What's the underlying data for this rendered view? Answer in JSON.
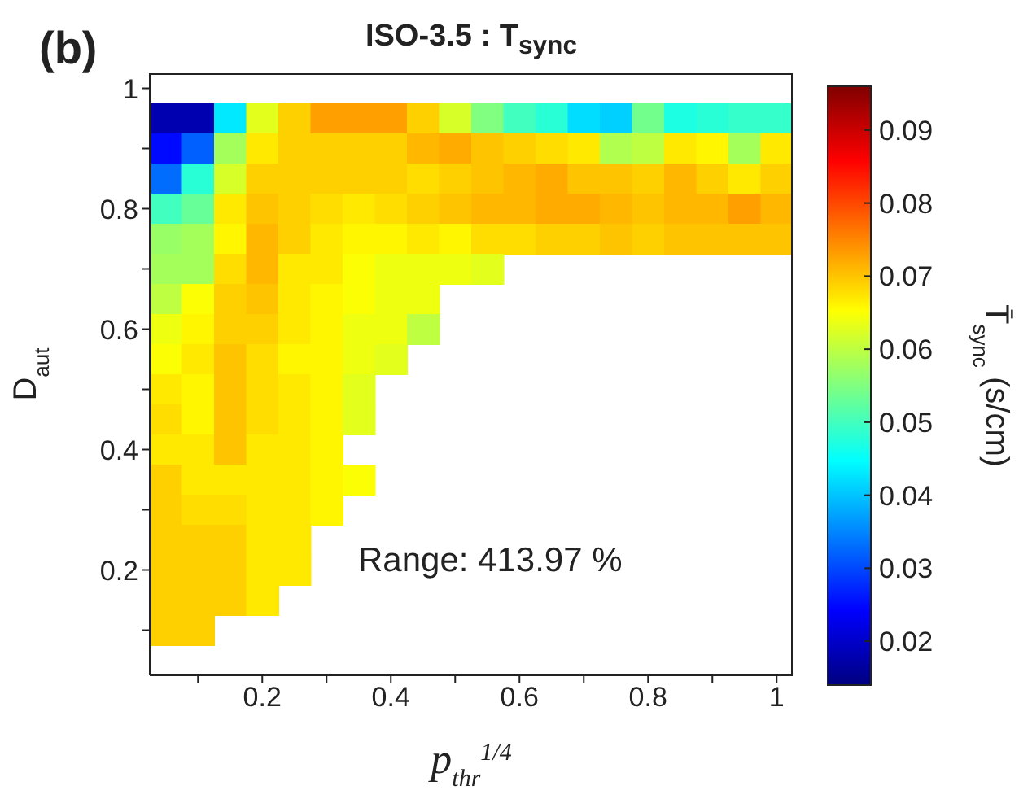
{
  "chart_data": {
    "type": "heatmap",
    "title": "ISO-3.5 : T$_{sync}$",
    "xlabel": "p$_{thr}$$^{1/4}$",
    "ylabel": "D$_{aut}$",
    "clabel": "T̄$_{sync}$ (s/cm)",
    "annotations": [
      "(b)",
      "Range: 413.97 %"
    ],
    "x": [
      0.05,
      0.1,
      0.15,
      0.2,
      0.25,
      0.3,
      0.35,
      0.4,
      0.45,
      0.5,
      0.55,
      0.6,
      0.65,
      0.7,
      0.75,
      0.8,
      0.85,
      0.9,
      0.95,
      1.0
    ],
    "y": [
      0.95,
      0.9,
      0.85,
      0.8,
      0.75,
      0.7,
      0.65,
      0.6,
      0.55,
      0.5,
      0.45,
      0.4,
      0.35,
      0.3,
      0.25,
      0.2,
      0.15,
      0.1
    ],
    "cells": [
      [
        0.018,
        0.018,
        0.043,
        0.063,
        0.069,
        0.073,
        0.073,
        0.073,
        0.069,
        0.062,
        0.055,
        0.05,
        0.048,
        0.042,
        0.041,
        0.054,
        0.047,
        0.048,
        0.049,
        0.049
      ],
      [
        0.025,
        0.032,
        0.058,
        0.067,
        0.069,
        0.069,
        0.069,
        0.069,
        0.071,
        0.072,
        0.07,
        0.069,
        0.068,
        0.067,
        0.059,
        0.06,
        0.067,
        0.066,
        0.058,
        0.067
      ],
      [
        0.033,
        0.048,
        0.062,
        0.069,
        0.069,
        0.069,
        0.069,
        0.069,
        0.068,
        0.069,
        0.07,
        0.071,
        0.072,
        0.07,
        0.07,
        0.069,
        0.071,
        0.069,
        0.067,
        0.069
      ],
      [
        0.05,
        0.053,
        0.067,
        0.07,
        0.069,
        0.068,
        0.067,
        0.068,
        0.069,
        0.07,
        0.071,
        0.071,
        0.072,
        0.072,
        0.071,
        0.07,
        0.071,
        0.071,
        0.073,
        0.071
      ],
      [
        0.057,
        0.058,
        0.066,
        0.071,
        0.069,
        0.067,
        0.066,
        0.066,
        0.067,
        0.066,
        0.068,
        0.068,
        0.069,
        0.069,
        0.07,
        0.069,
        0.07,
        0.07,
        0.07,
        0.07
      ],
      [
        0.058,
        0.058,
        0.068,
        0.071,
        0.067,
        0.067,
        0.065,
        0.064,
        0.064,
        0.064,
        0.063,
        null,
        null,
        null,
        null,
        null,
        null,
        null,
        null,
        null
      ],
      [
        0.06,
        0.065,
        0.069,
        0.07,
        0.067,
        0.066,
        0.065,
        0.064,
        0.064,
        null,
        null,
        null,
        null,
        null,
        null,
        null,
        null,
        null,
        null,
        null
      ],
      [
        0.064,
        0.066,
        0.069,
        0.069,
        0.067,
        0.066,
        0.064,
        0.064,
        0.06,
        null,
        null,
        null,
        null,
        null,
        null,
        null,
        null,
        null,
        null,
        null
      ],
      [
        0.065,
        0.067,
        0.07,
        0.068,
        0.066,
        0.066,
        0.064,
        0.063,
        null,
        null,
        null,
        null,
        null,
        null,
        null,
        null,
        null,
        null,
        null,
        null
      ],
      [
        0.067,
        0.066,
        0.07,
        0.068,
        0.067,
        0.066,
        0.063,
        null,
        null,
        null,
        null,
        null,
        null,
        null,
        null,
        null,
        null,
        null,
        null,
        null
      ],
      [
        0.068,
        0.066,
        0.07,
        0.068,
        0.067,
        0.066,
        0.063,
        null,
        null,
        null,
        null,
        null,
        null,
        null,
        null,
        null,
        null,
        null,
        null,
        null
      ],
      [
        0.067,
        0.067,
        0.07,
        0.067,
        0.067,
        0.066,
        null,
        null,
        null,
        null,
        null,
        null,
        null,
        null,
        null,
        null,
        null,
        null,
        null,
        null
      ],
      [
        0.069,
        0.067,
        0.067,
        0.067,
        0.067,
        0.066,
        0.065,
        null,
        null,
        null,
        null,
        null,
        null,
        null,
        null,
        null,
        null,
        null,
        null,
        null
      ],
      [
        0.069,
        0.068,
        0.068,
        0.067,
        0.067,
        0.066,
        null,
        null,
        null,
        null,
        null,
        null,
        null,
        null,
        null,
        null,
        null,
        null,
        null,
        null
      ],
      [
        0.069,
        0.069,
        0.069,
        0.067,
        0.067,
        null,
        null,
        null,
        null,
        null,
        null,
        null,
        null,
        null,
        null,
        null,
        null,
        null,
        null,
        null
      ],
      [
        0.069,
        0.069,
        0.069,
        0.067,
        0.067,
        null,
        null,
        null,
        null,
        null,
        null,
        null,
        null,
        null,
        null,
        null,
        null,
        null,
        null,
        null
      ],
      [
        0.069,
        0.069,
        0.069,
        0.067,
        null,
        null,
        null,
        null,
        null,
        null,
        null,
        null,
        null,
        null,
        null,
        null,
        null,
        null,
        null,
        null
      ],
      [
        0.069,
        0.069,
        null,
        null,
        null,
        null,
        null,
        null,
        null,
        null,
        null,
        null,
        null,
        null,
        null,
        null,
        null,
        null,
        null,
        null
      ]
    ],
    "xlim": [
      0.025,
      1.025
    ],
    "ylim": [
      0.025,
      1.025
    ],
    "xticks": [
      {
        "value": 0.1,
        "label": null
      },
      0.2,
      {
        "value": 0.3,
        "label": null
      },
      0.4,
      {
        "value": 0.5,
        "label": null
      },
      0.6,
      {
        "value": 0.7,
        "label": null
      },
      0.8,
      {
        "value": 0.9,
        "label": null
      },
      1
    ],
    "yticks": [
      {
        "value": 0.1,
        "label": null
      },
      0.2,
      {
        "value": 0.3,
        "label": null
      },
      0.4,
      {
        "value": 0.5,
        "label": null
      },
      0.6,
      {
        "value": 0.7,
        "label": null
      },
      0.8,
      {
        "value": 0.9,
        "label": null
      },
      1
    ],
    "clim": [
      0.014,
      0.096
    ],
    "cticks": [
      0.02,
      0.03,
      0.04,
      0.05,
      0.06,
      0.07,
      0.08,
      0.09
    ]
  }
}
